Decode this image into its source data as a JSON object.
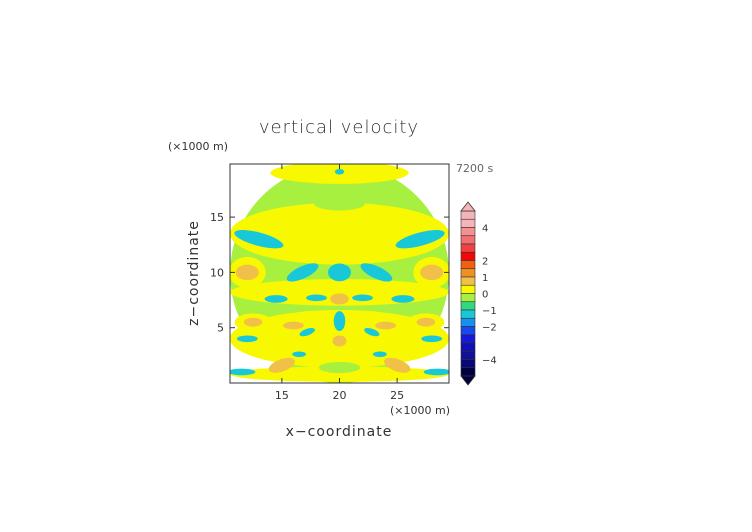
{
  "chart_data": {
    "type": "heatmap",
    "title": "vertical velocity",
    "xlabel": "x−coordinate",
    "ylabel": "z−coordinate",
    "x_unit": "(×1000 m)",
    "y_unit": "(×1000 m)",
    "time_label": "7200 s",
    "xlim": [
      10.5,
      29.5
    ],
    "ylim": [
      0,
      19.8
    ],
    "x_ticks": [
      15,
      20,
      25
    ],
    "y_ticks": [
      5,
      10,
      15
    ],
    "x_tick_labels": [
      "15",
      "20",
      "25"
    ],
    "y_tick_labels": [
      "5",
      "10",
      "15"
    ],
    "colorbar": {
      "min": -5,
      "max": 5,
      "tick_values": [
        4,
        2,
        1,
        0,
        -1,
        -2,
        -4
      ],
      "tick_labels": [
        "4",
        "2",
        "1",
        "0",
        "−1",
        "−2",
        "−4"
      ],
      "bins": [
        {
          "low": 4.5,
          "high": 5.0,
          "color": "#f4b4b8"
        },
        {
          "low": 4.0,
          "high": 4.5,
          "color": "#f4b4b8"
        },
        {
          "low": 3.5,
          "high": 4.0,
          "color": "#f49090"
        },
        {
          "low": 3.0,
          "high": 3.5,
          "color": "#f07070"
        },
        {
          "low": 2.5,
          "high": 3.0,
          "color": "#f04040"
        },
        {
          "low": 2.0,
          "high": 2.5,
          "color": "#f00808"
        },
        {
          "low": 1.5,
          "high": 2.0,
          "color": "#f06010"
        },
        {
          "low": 1.0,
          "high": 1.5,
          "color": "#f09020"
        },
        {
          "low": 0.5,
          "high": 1.0,
          "color": "#f0c048"
        },
        {
          "low": 0.0,
          "high": 0.5,
          "color": "#f8f800"
        },
        {
          "low": -0.5,
          "high": 0.0,
          "color": "#a8f040"
        },
        {
          "low": -1.0,
          "high": -0.5,
          "color": "#30d880"
        },
        {
          "low": -1.5,
          "high": -1.0,
          "color": "#18c8d8"
        },
        {
          "low": -2.0,
          "high": -1.5,
          "color": "#1890f0"
        },
        {
          "low": -2.5,
          "high": -2.0,
          "color": "#1848f0"
        },
        {
          "low": -3.0,
          "high": -2.5,
          "color": "#1818d8"
        },
        {
          "low": -3.5,
          "high": -3.0,
          "color": "#1010b8"
        },
        {
          "low": -4.0,
          "high": -3.5,
          "color": "#101098"
        },
        {
          "low": -4.5,
          "high": -4.0,
          "color": "#080878"
        },
        {
          "low": -5.0,
          "high": -4.5,
          "color": "#000040"
        }
      ]
    },
    "regions": [
      {
        "cx": 20,
        "cy": 9.9,
        "rx": 9.5,
        "ry": 9.9,
        "value": -0.3
      },
      {
        "cx": 20,
        "cy": 13.5,
        "rx": 9.5,
        "ry": 2.8,
        "value": 0.2
      },
      {
        "cx": 20,
        "cy": 8.2,
        "rx": 9.5,
        "ry": 1.2,
        "value": 0.2
      },
      {
        "cx": 20,
        "cy": 4.0,
        "rx": 9.5,
        "ry": 2.6,
        "value": 0.2
      },
      {
        "cx": 20,
        "cy": 0.8,
        "rx": 9.5,
        "ry": 0.7,
        "value": 0.2
      },
      {
        "cx": 20,
        "cy": 19.0,
        "rx": 6.0,
        "ry": 1.0,
        "value": 0.2
      },
      {
        "cx": 20,
        "cy": 16.2,
        "rx": 2.2,
        "ry": 0.6,
        "value": -0.3
      },
      {
        "cx": 20,
        "cy": 10.0,
        "rx": 1.0,
        "ry": 0.8,
        "value": -1.2
      },
      {
        "cx": 20,
        "cy": 19.1,
        "rx": 0.4,
        "ry": 0.25,
        "value": -1.2
      },
      {
        "cx": 20,
        "cy": 7.6,
        "rx": 0.8,
        "ry": 0.5,
        "value": 0.8
      },
      {
        "cx": 20,
        "cy": 5.6,
        "rx": 0.5,
        "ry": 0.9,
        "value": -1.2
      },
      {
        "cx": 20,
        "cy": 3.8,
        "rx": 0.6,
        "ry": 0.5,
        "value": 0.8
      },
      {
        "cx": 12.0,
        "cy": 10.0,
        "rx": 1.6,
        "ry": 1.4,
        "value": 0.2
      },
      {
        "cx": 12.0,
        "cy": 10.0,
        "rx": 1.0,
        "ry": 0.7,
        "value": 0.8
      },
      {
        "cx": 28.0,
        "cy": 10.0,
        "rx": 1.6,
        "ry": 1.4,
        "value": 0.2
      },
      {
        "cx": 28.0,
        "cy": 10.0,
        "rx": 1.0,
        "ry": 0.7,
        "value": 0.8
      },
      {
        "cx": 13.0,
        "cy": 13.0,
        "rx": 2.2,
        "ry": 0.6,
        "value": -1.2,
        "rot": 15
      },
      {
        "cx": 27.0,
        "cy": 13.0,
        "rx": 2.2,
        "ry": 0.6,
        "value": -1.2,
        "rot": -15
      },
      {
        "cx": 16.8,
        "cy": 10.0,
        "rx": 1.5,
        "ry": 0.55,
        "value": -1.2,
        "rot": -25
      },
      {
        "cx": 23.2,
        "cy": 10.0,
        "rx": 1.5,
        "ry": 0.55,
        "value": -1.2,
        "rot": 25
      },
      {
        "cx": 14.5,
        "cy": 7.6,
        "rx": 1.0,
        "ry": 0.35,
        "value": -1.2
      },
      {
        "cx": 25.5,
        "cy": 7.6,
        "rx": 1.0,
        "ry": 0.35,
        "value": -1.2
      },
      {
        "cx": 18.0,
        "cy": 7.7,
        "rx": 0.9,
        "ry": 0.3,
        "value": -1.2
      },
      {
        "cx": 22.0,
        "cy": 7.7,
        "rx": 0.9,
        "ry": 0.3,
        "value": -1.2
      },
      {
        "cx": 12.5,
        "cy": 5.5,
        "rx": 1.6,
        "ry": 0.8,
        "value": 0.2
      },
      {
        "cx": 12.5,
        "cy": 5.5,
        "rx": 0.8,
        "ry": 0.4,
        "value": 0.8
      },
      {
        "cx": 27.5,
        "cy": 5.5,
        "rx": 1.6,
        "ry": 0.8,
        "value": 0.2
      },
      {
        "cx": 27.5,
        "cy": 5.5,
        "rx": 0.8,
        "ry": 0.4,
        "value": 0.8
      },
      {
        "cx": 16.0,
        "cy": 5.2,
        "rx": 0.9,
        "ry": 0.35,
        "value": 0.8
      },
      {
        "cx": 24.0,
        "cy": 5.2,
        "rx": 0.9,
        "ry": 0.35,
        "value": 0.8
      },
      {
        "cx": 12.0,
        "cy": 4.0,
        "rx": 0.9,
        "ry": 0.3,
        "value": -1.2
      },
      {
        "cx": 28.0,
        "cy": 4.0,
        "rx": 0.9,
        "ry": 0.3,
        "value": -1.2
      },
      {
        "cx": 17.2,
        "cy": 4.6,
        "rx": 0.7,
        "ry": 0.3,
        "value": -1.2,
        "rot": -20
      },
      {
        "cx": 22.8,
        "cy": 4.6,
        "rx": 0.7,
        "ry": 0.3,
        "value": -1.2,
        "rot": 20
      },
      {
        "cx": 15.0,
        "cy": 1.6,
        "rx": 1.2,
        "ry": 0.55,
        "value": 0.8,
        "rot": -20
      },
      {
        "cx": 25.0,
        "cy": 1.6,
        "rx": 1.2,
        "ry": 0.55,
        "value": 0.8,
        "rot": 20
      },
      {
        "cx": 11.5,
        "cy": 1.0,
        "rx": 1.2,
        "ry": 0.3,
        "value": -1.2
      },
      {
        "cx": 28.5,
        "cy": 1.0,
        "rx": 1.2,
        "ry": 0.3,
        "value": -1.2
      },
      {
        "cx": 16.5,
        "cy": 2.6,
        "rx": 0.6,
        "ry": 0.25,
        "value": -1.2
      },
      {
        "cx": 23.5,
        "cy": 2.6,
        "rx": 0.6,
        "ry": 0.25,
        "value": -1.2
      },
      {
        "cx": 20,
        "cy": 1.4,
        "rx": 1.8,
        "ry": 0.5,
        "value": -0.3
      }
    ]
  }
}
